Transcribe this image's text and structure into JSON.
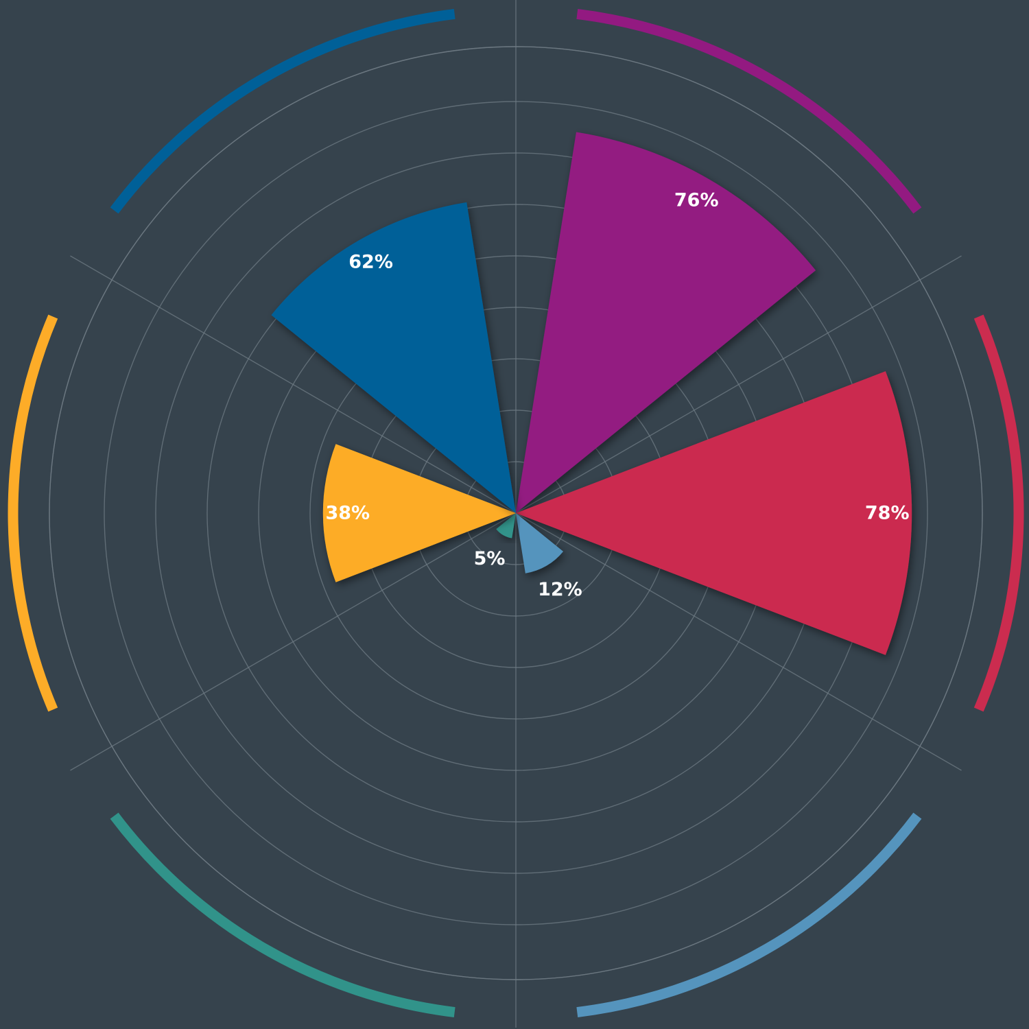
{
  "chart_data": {
    "type": "polar-area",
    "title": "",
    "background_color": "#36434d",
    "grid": true,
    "grid_color": "#6f7b84",
    "rlim": [
      0,
      100
    ],
    "ring_step_percent": 10,
    "spoke_count": 6,
    "categories": [
      {
        "value": 76,
        "label": "76%",
        "color": "#931a81"
      },
      {
        "value": 78,
        "label": "78%",
        "color": "#cb2c4f"
      },
      {
        "value": 12,
        "label": "12%",
        "color": "#5594bd"
      },
      {
        "value": 5,
        "label": "5%",
        "color": "#31938a"
      },
      {
        "value": 38,
        "label": "38%",
        "color": "#fdac28"
      },
      {
        "value": 62,
        "label": "62%",
        "color": "#006098"
      }
    ]
  }
}
